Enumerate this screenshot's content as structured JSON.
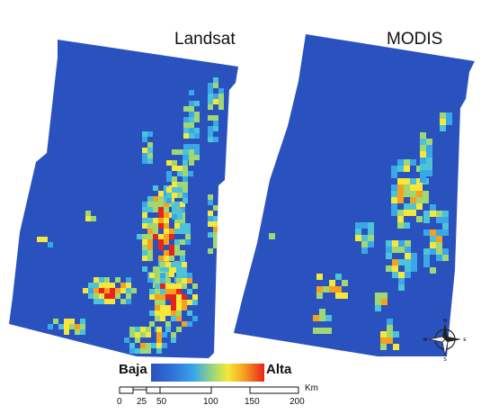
{
  "panels": {
    "left_title": "Landsat",
    "right_title": "MODIS"
  },
  "legend": {
    "low_label": "Baja",
    "high_label": "Alta",
    "colors": [
      "#2a52be",
      "#3aa7e8",
      "#9fd873",
      "#f5e83a",
      "#f6a020",
      "#e8231b"
    ]
  },
  "scale_bar": {
    "ticks": [
      "0",
      "25",
      "50",
      "100",
      "150",
      "200"
    ],
    "unit": "Km"
  },
  "compass": {
    "north": "N",
    "south": "S",
    "east": "E",
    "west": "W",
    "icon": "compass-rose-icon"
  },
  "colors": {
    "water_blue": "#2a52be",
    "hot_red": "#e8231b",
    "mid_yellow": "#f5e83a"
  }
}
